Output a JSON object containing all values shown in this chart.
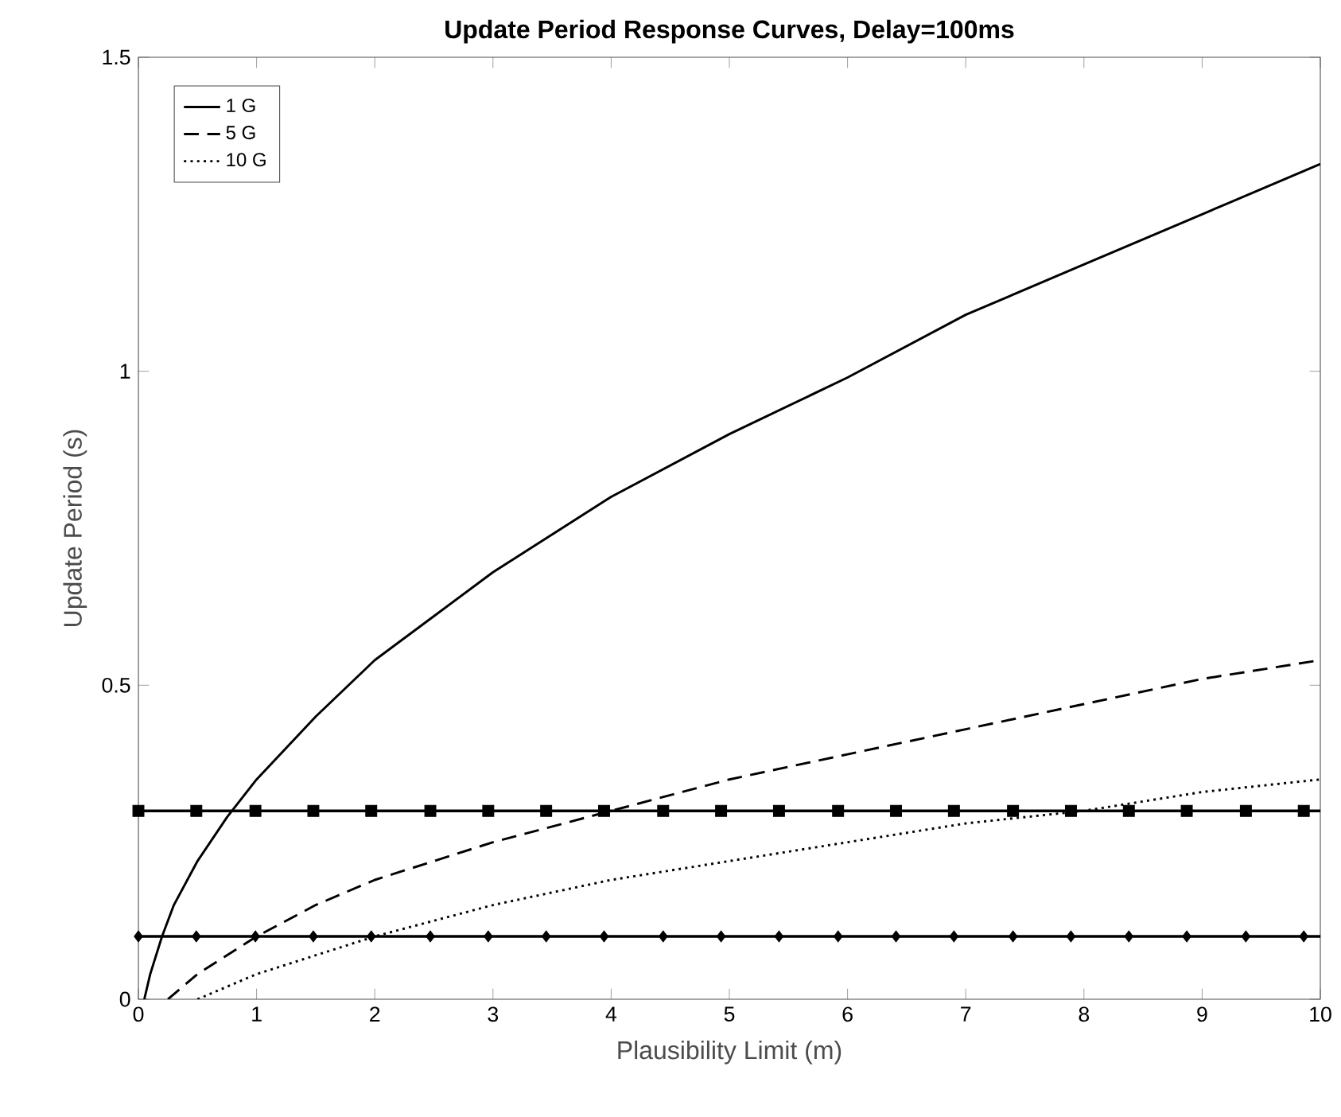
{
  "chart_data": {
    "type": "line",
    "title": "Update Period Response Curves, Delay=100ms",
    "xlabel": "Plausibility Limit (m)",
    "ylabel": "Update Period (s)",
    "xlim": [
      0,
      10
    ],
    "ylim": [
      0,
      1.5
    ],
    "xticks": [
      0,
      1,
      2,
      3,
      4,
      5,
      6,
      7,
      8,
      9,
      10
    ],
    "yticks": [
      0,
      0.5,
      1,
      1.5
    ],
    "grid": false,
    "legend": "top left",
    "marker": "none",
    "series": [
      {
        "name": "1 G",
        "color": "#000000",
        "line_style": "solid",
        "x": [
          0.05,
          0.1,
          0.2,
          0.3,
          0.5,
          0.75,
          1,
          1.5,
          2,
          2.5,
          3,
          4,
          5,
          6,
          7,
          8,
          9,
          10
        ],
        "values": [
          0,
          0.04,
          0.1,
          0.15,
          0.22,
          0.29,
          0.35,
          0.45,
          0.54,
          0.61,
          0.68,
          0.8,
          0.9,
          0.99,
          1.09,
          1.17,
          1.25,
          1.33
        ]
      },
      {
        "name": "5 G",
        "color": "#000000",
        "line_style": "dashed",
        "x": [
          0.25,
          0.5,
          1,
          1.5,
          2,
          3,
          4,
          5,
          6,
          7,
          8,
          9,
          10
        ],
        "values": [
          0,
          0.04,
          0.1,
          0.15,
          0.19,
          0.25,
          0.3,
          0.35,
          0.39,
          0.43,
          0.47,
          0.51,
          0.54
        ]
      },
      {
        "name": "10 G",
        "color": "#000000",
        "line_style": "dotted",
        "x": [
          0.5,
          1,
          1.5,
          2,
          3,
          4,
          5,
          6,
          7,
          8,
          9,
          10
        ],
        "values": [
          0,
          0.04,
          0.07,
          0.1,
          0.15,
          0.19,
          0.22,
          0.25,
          0.28,
          0.3,
          0.33,
          0.35
        ]
      },
      {
        "type": "scatter",
        "marker": "square",
        "color": "#000000",
        "x": [
          0,
          0.49,
          0.99,
          1.48,
          1.97,
          2.47,
          2.96,
          3.45,
          3.94,
          4.44,
          4.93,
          5.42,
          5.92,
          6.41,
          6.9,
          7.4,
          7.89,
          8.38,
          8.87,
          9.37,
          9.86
        ],
        "values": [
          0.3,
          0.3,
          0.3,
          0.3,
          0.3,
          0.3,
          0.3,
          0.3,
          0.3,
          0.3,
          0.3,
          0.3,
          0.3,
          0.3,
          0.3,
          0.3,
          0.3,
          0.3,
          0.3,
          0.3,
          0.3
        ]
      },
      {
        "type": "scatter",
        "marker": "diamond",
        "color": "#000000",
        "x": [
          0,
          0.49,
          0.99,
          1.48,
          1.97,
          2.47,
          2.96,
          3.45,
          3.94,
          4.44,
          4.93,
          5.42,
          5.92,
          6.41,
          6.9,
          7.4,
          7.89,
          8.38,
          8.87,
          9.37,
          9.86
        ],
        "values": [
          0.1,
          0.1,
          0.1,
          0.1,
          0.1,
          0.1,
          0.1,
          0.1,
          0.1,
          0.1,
          0.1,
          0.1,
          0.1,
          0.1,
          0.1,
          0.1,
          0.1,
          0.1,
          0.1,
          0.1,
          0.1
        ]
      }
    ],
    "ref_lines": [
      {
        "axis": "y",
        "value": 0.3,
        "color": "#000000",
        "line_style": "solid"
      },
      {
        "axis": "y",
        "value": 0.1,
        "color": "#000000",
        "line_style": "solid"
      }
    ]
  }
}
